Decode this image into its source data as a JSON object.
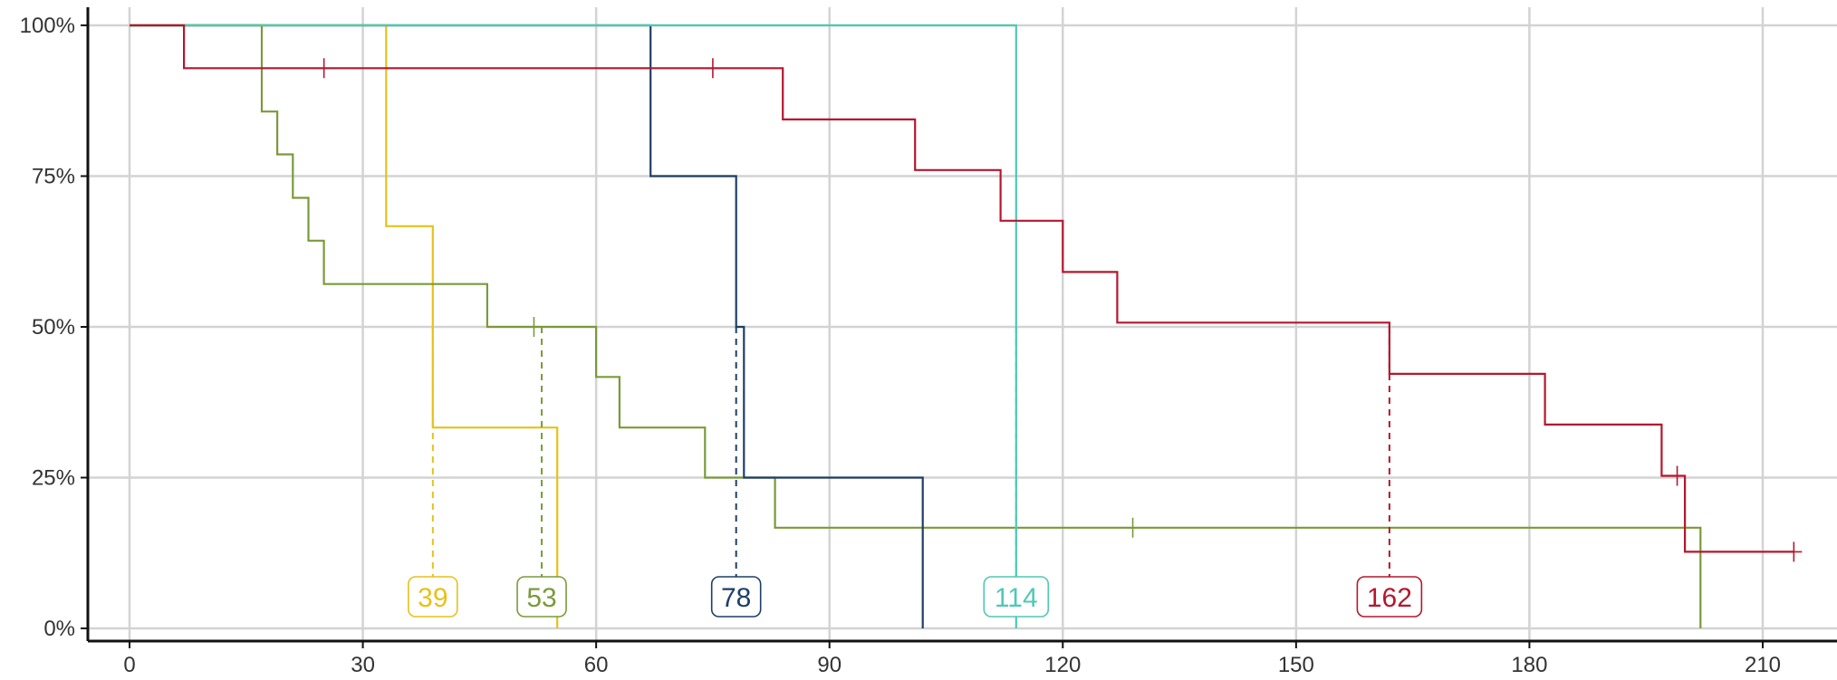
{
  "chart_data": {
    "type": "line",
    "step": true,
    "title": "",
    "xlabel": "",
    "ylabel": "",
    "xlim": [
      -4,
      219
    ],
    "ylim": [
      -0.02,
      1.0
    ],
    "x_ticks": [
      0,
      30,
      60,
      90,
      120,
      150,
      180,
      210
    ],
    "y_ticks": [
      0,
      0.25,
      0.5,
      0.75,
      1.0
    ],
    "x_tick_labels": [
      "0",
      "30",
      "60",
      "90",
      "120",
      "150",
      "180",
      "210"
    ],
    "y_tick_labels": [
      "0%",
      "25%",
      "50%",
      "75%",
      "100%"
    ],
    "grid": true,
    "legend": "none",
    "series": [
      {
        "color": "#E6C21A",
        "points": [
          [
            0,
            1.0
          ],
          [
            33,
            1.0
          ],
          [
            33,
            0.667
          ],
          [
            39,
            0.667
          ],
          [
            39,
            0.333
          ],
          [
            55,
            0.333
          ],
          [
            55,
            0.0
          ]
        ],
        "censored": [],
        "median": 39,
        "median_label": "39"
      },
      {
        "color": "#7A9A3A",
        "points": [
          [
            0,
            1.0
          ],
          [
            17,
            1.0
          ],
          [
            17,
            0.857
          ],
          [
            19,
            0.857
          ],
          [
            19,
            0.786
          ],
          [
            21,
            0.786
          ],
          [
            21,
            0.714
          ],
          [
            23,
            0.714
          ],
          [
            23,
            0.643
          ],
          [
            25,
            0.643
          ],
          [
            25,
            0.571
          ],
          [
            46,
            0.571
          ],
          [
            46,
            0.5
          ],
          [
            60,
            0.5
          ],
          [
            60,
            0.417
          ],
          [
            63,
            0.417
          ],
          [
            63,
            0.333
          ],
          [
            74,
            0.333
          ],
          [
            74,
            0.25
          ],
          [
            83,
            0.25
          ],
          [
            83,
            0.167
          ],
          [
            202,
            0.167
          ],
          [
            202,
            0.0
          ]
        ],
        "censored": [
          [
            52,
            0.5
          ],
          [
            129,
            0.167
          ]
        ],
        "median": 53,
        "median_label": "53"
      },
      {
        "color": "#1F3F66",
        "points": [
          [
            0,
            1.0
          ],
          [
            67,
            1.0
          ],
          [
            67,
            0.75
          ],
          [
            78,
            0.75
          ],
          [
            78,
            0.5
          ],
          [
            79,
            0.5
          ],
          [
            79,
            0.25
          ],
          [
            102,
            0.25
          ],
          [
            102,
            0.0
          ]
        ],
        "censored": [],
        "median": 78,
        "median_label": "78"
      },
      {
        "color": "#4EC9B4",
        "points": [
          [
            0,
            1.0
          ],
          [
            114,
            1.0
          ],
          [
            114,
            0.0
          ]
        ],
        "censored": [],
        "median": 114,
        "median_label": "114"
      },
      {
        "color": "#B5172E",
        "points": [
          [
            0,
            1.0
          ],
          [
            7,
            1.0
          ],
          [
            7,
            0.929
          ],
          [
            84,
            0.929
          ],
          [
            84,
            0.844
          ],
          [
            101,
            0.844
          ],
          [
            101,
            0.76
          ],
          [
            112,
            0.76
          ],
          [
            112,
            0.676
          ],
          [
            120,
            0.676
          ],
          [
            120,
            0.591
          ],
          [
            127,
            0.591
          ],
          [
            127,
            0.507
          ],
          [
            162,
            0.507
          ],
          [
            162,
            0.422
          ],
          [
            182,
            0.422
          ],
          [
            182,
            0.338
          ],
          [
            197,
            0.338
          ],
          [
            197,
            0.253
          ],
          [
            200,
            0.253
          ],
          [
            200,
            0.127
          ],
          [
            214,
            0.127
          ]
        ],
        "censored": [
          [
            25,
            0.929
          ],
          [
            75,
            0.929
          ],
          [
            199,
            0.253
          ],
          [
            214,
            0.127
          ]
        ],
        "median": 162,
        "median_label": "162"
      }
    ]
  }
}
